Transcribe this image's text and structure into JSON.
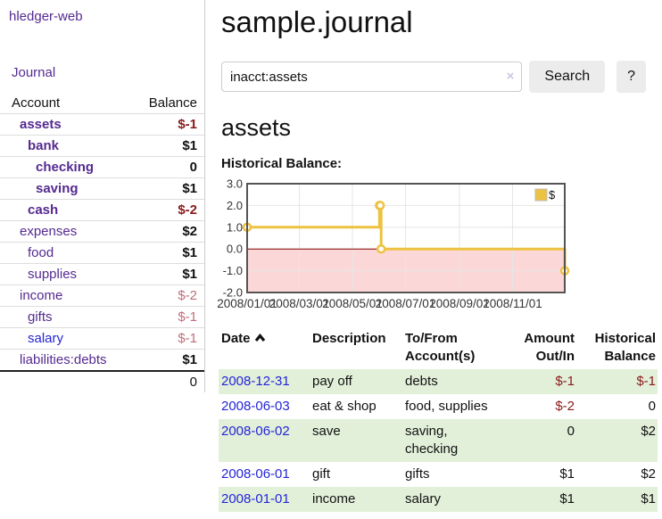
{
  "sidebar": {
    "brand": "hledger-web",
    "journal_link": "Journal",
    "accounts": {
      "col_account": "Account",
      "col_balance": "Balance",
      "rows": [
        {
          "name": "assets",
          "depth": 1,
          "bold": true,
          "balance": "$-1",
          "neg": "strong",
          "balance_bold": true,
          "link": "purple"
        },
        {
          "name": "bank",
          "depth": 2,
          "bold": true,
          "balance": "$1",
          "neg": "none",
          "balance_bold": true,
          "link": "purple"
        },
        {
          "name": "checking",
          "depth": 3,
          "bold": true,
          "balance": "0",
          "neg": "none",
          "balance_bold": true,
          "link": "purple"
        },
        {
          "name": "saving",
          "depth": 3,
          "bold": true,
          "balance": "$1",
          "neg": "none",
          "balance_bold": true,
          "link": "purple"
        },
        {
          "name": "cash",
          "depth": 2,
          "bold": true,
          "balance": "$-2",
          "neg": "strong",
          "balance_bold": true,
          "link": "purple"
        },
        {
          "name": "expenses",
          "depth": 1,
          "bold": false,
          "balance": "$2",
          "neg": "none",
          "balance_bold": true,
          "link": "purple"
        },
        {
          "name": "food",
          "depth": 2,
          "bold": false,
          "balance": "$1",
          "neg": "none",
          "balance_bold": true,
          "link": "purple"
        },
        {
          "name": "supplies",
          "depth": 2,
          "bold": false,
          "balance": "$1",
          "neg": "none",
          "balance_bold": true,
          "link": "purple"
        },
        {
          "name": "income",
          "depth": 1,
          "bold": false,
          "balance": "$-2",
          "neg": "weak",
          "balance_bold": false,
          "link": "purple"
        },
        {
          "name": "gifts",
          "depth": 2,
          "bold": false,
          "balance": "$-1",
          "neg": "weak",
          "balance_bold": false,
          "link": "purple"
        },
        {
          "name": "salary",
          "depth": 2,
          "bold": false,
          "balance": "$-1",
          "neg": "weak",
          "balance_bold": false,
          "link": "blue"
        },
        {
          "name": "liabilities:debts",
          "depth": 1,
          "bold": false,
          "balance": "$1",
          "neg": "none",
          "balance_bold": true,
          "link": "purple"
        }
      ],
      "total": "0"
    }
  },
  "header": {
    "title": "sample.journal"
  },
  "search": {
    "value": "inacct:assets",
    "clear_icon": "×",
    "button": "Search",
    "help_button": "?"
  },
  "account_page": {
    "heading": "assets",
    "chart_label": "Historical Balance:"
  },
  "chart_data": {
    "type": "line",
    "step": true,
    "title": "Historical Balance:",
    "series": [
      {
        "name": "$",
        "color": "#edc240",
        "points": [
          [
            "2008-01-01",
            1
          ],
          [
            "2008-06-01",
            2
          ],
          [
            "2008-06-02",
            2
          ],
          [
            "2008-06-03",
            0
          ],
          [
            "2008-12-31",
            -1
          ]
        ]
      }
    ],
    "x_ticks": [
      "2008/01/01",
      "2008/03/01",
      "2008/05/01",
      "2008/07/01",
      "2008/09/01",
      "2008/11/01"
    ],
    "y_ticks": [
      3.0,
      2.0,
      1.0,
      0.0,
      -1.0,
      -2.0
    ],
    "ylim": [
      -2,
      3
    ],
    "grid": true,
    "legend_position": "top-right",
    "negative_region_fill": "#fcd7d7",
    "zero_line_color": "#8b0000",
    "plot_border_color": "#545454"
  },
  "transactions": {
    "headers": {
      "date": "Date",
      "description": "Description",
      "tofrom": "To/From Account(s)",
      "amount": "Amount Out/In",
      "historical": "Historical Balance"
    },
    "rows": [
      {
        "date": "2008-12-31",
        "description": "pay off",
        "accounts": "debts",
        "amount": "$-1",
        "amount_neg": true,
        "balance": "$-1",
        "balance_neg": true
      },
      {
        "date": "2008-06-03",
        "description": "eat & shop",
        "accounts": "food, supplies",
        "amount": "$-2",
        "amount_neg": true,
        "balance": "0",
        "balance_neg": false
      },
      {
        "date": "2008-06-02",
        "description": "save",
        "accounts": "saving, checking",
        "amount": "0",
        "amount_neg": false,
        "balance": "$2",
        "balance_neg": false
      },
      {
        "date": "2008-06-01",
        "description": "gift",
        "accounts": "gifts",
        "amount": "$1",
        "amount_neg": false,
        "balance": "$2",
        "balance_neg": false
      },
      {
        "date": "2008-01-01",
        "description": "income",
        "accounts": "salary",
        "amount": "$1",
        "amount_neg": false,
        "balance": "$1",
        "balance_neg": false
      }
    ]
  }
}
